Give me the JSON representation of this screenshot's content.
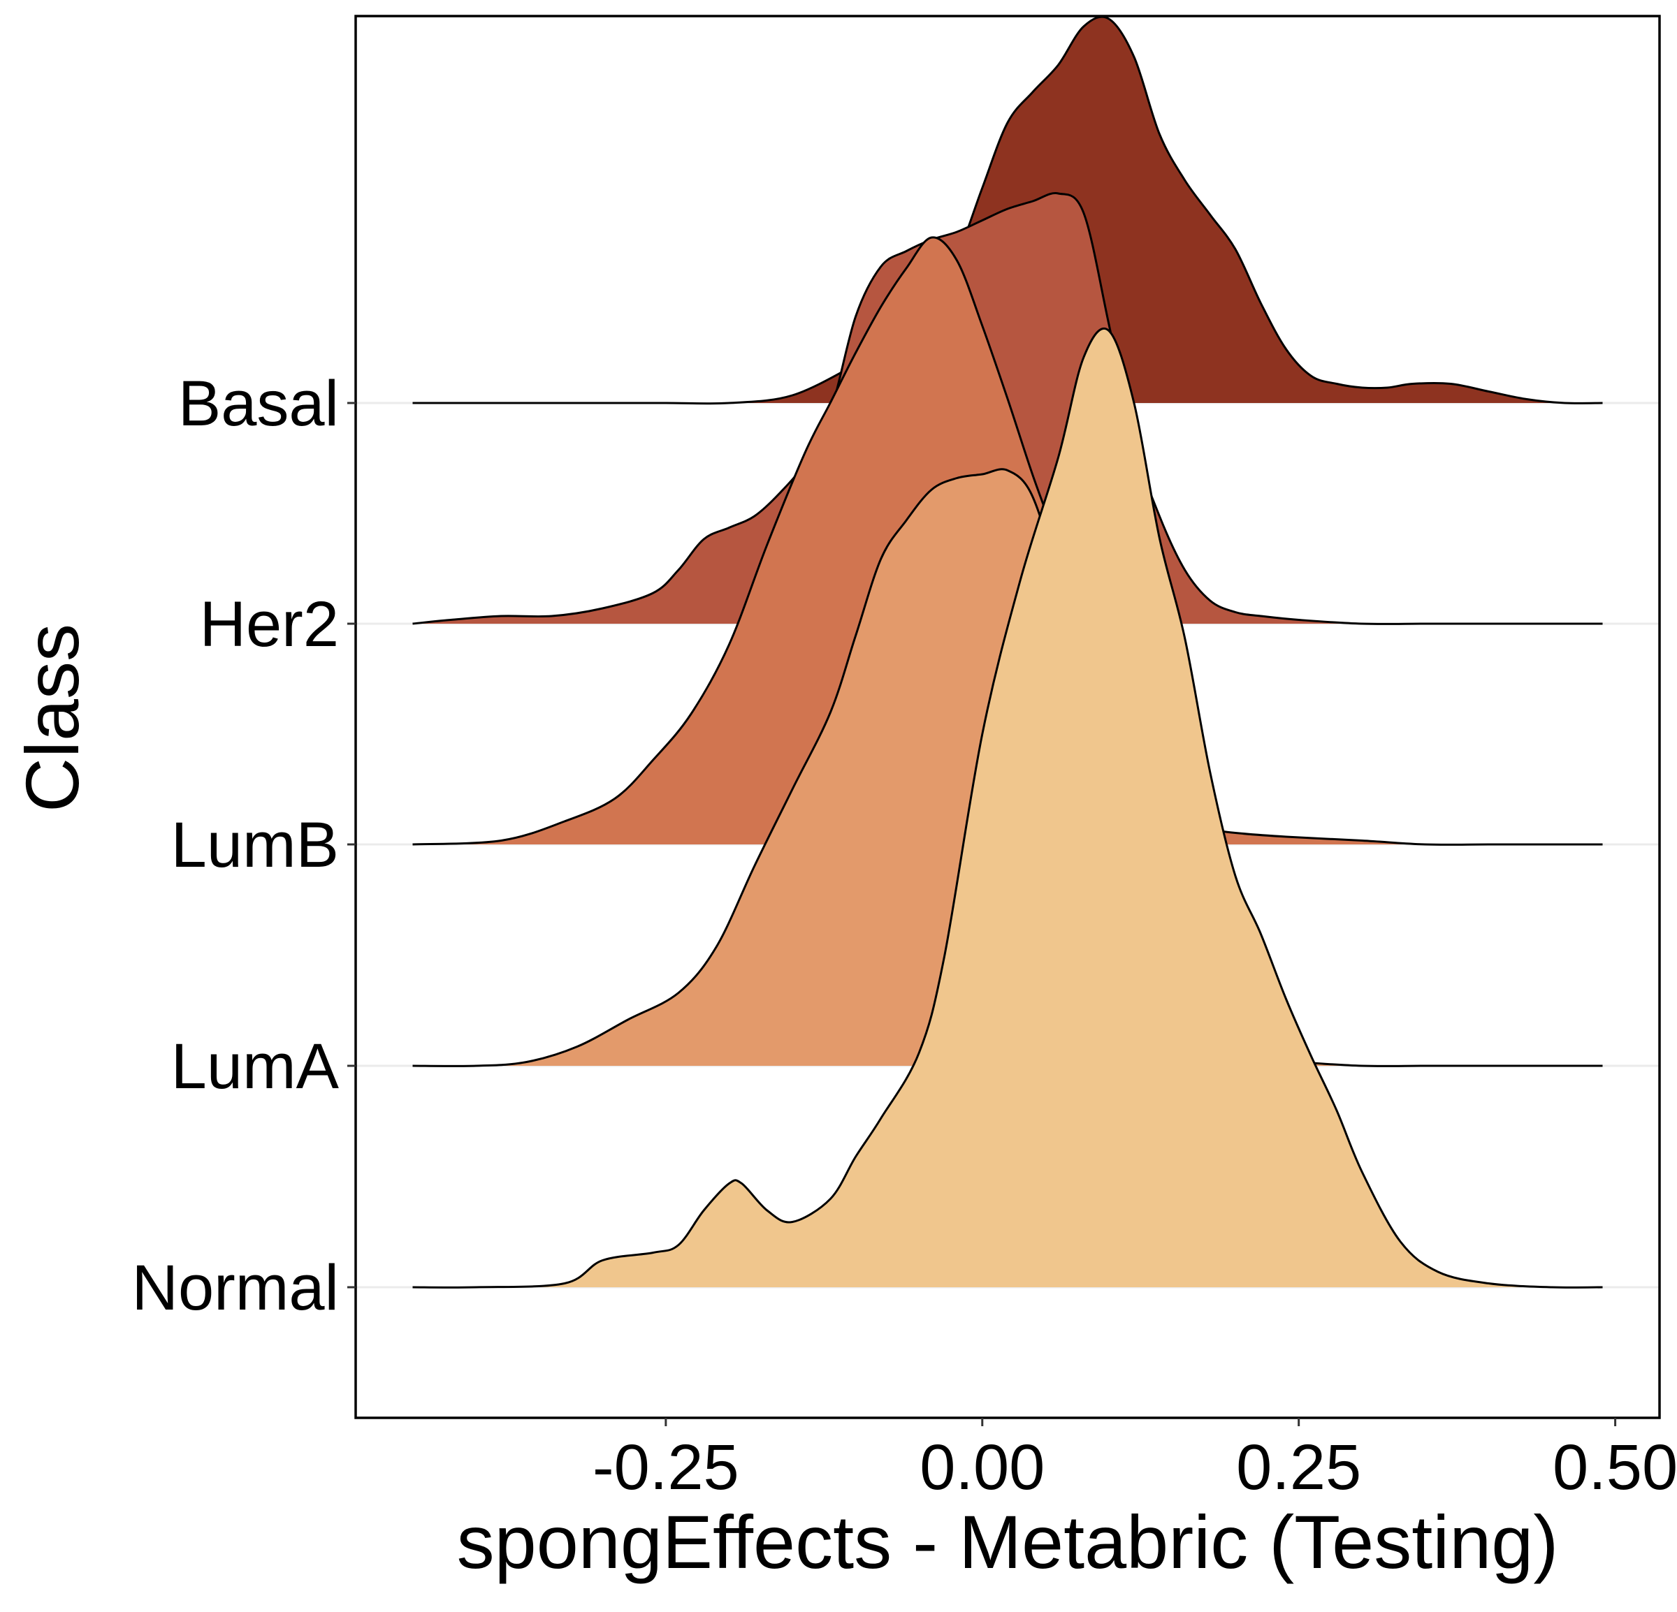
{
  "chart_data": {
    "type": "ridgeline",
    "xlabel": "spongEffects - Metabric (Testing)",
    "ylabel": "Class",
    "xlim": [
      -0.495,
      0.535
    ],
    "x_ticks": [
      "-0.25",
      "0.00",
      "0.25",
      "0.50"
    ],
    "x_tick_values": [
      -0.25,
      0.0,
      0.25,
      0.5
    ],
    "grid": "horizontal major lines at each class baseline",
    "legend": "none",
    "series": [
      {
        "name": "Basal",
        "color": "#8E3320",
        "x": [
          -0.45,
          -0.35,
          -0.3,
          -0.25,
          -0.2,
          -0.15,
          -0.1,
          -0.08,
          -0.06,
          -0.04,
          -0.02,
          0.0,
          0.02,
          0.04,
          0.06,
          0.08,
          0.1,
          0.12,
          0.14,
          0.16,
          0.18,
          0.2,
          0.22,
          0.24,
          0.26,
          0.28,
          0.3,
          0.32,
          0.34,
          0.37,
          0.4,
          0.43,
          0.46,
          0.49
        ],
        "density": [
          0.0,
          0.0,
          0.0,
          0.0,
          0.0,
          0.02,
          0.1,
          0.14,
          0.19,
          0.26,
          0.38,
          0.56,
          0.73,
          0.81,
          0.88,
          0.98,
          1.0,
          0.9,
          0.7,
          0.58,
          0.49,
          0.4,
          0.26,
          0.14,
          0.07,
          0.05,
          0.04,
          0.04,
          0.05,
          0.05,
          0.03,
          0.01,
          0.0,
          0.0
        ]
      },
      {
        "name": "Her2",
        "color": "#B65640",
        "x": [
          -0.45,
          -0.42,
          -0.38,
          -0.34,
          -0.3,
          -0.26,
          -0.24,
          -0.22,
          -0.2,
          -0.18,
          -0.16,
          -0.14,
          -0.12,
          -0.1,
          -0.08,
          -0.06,
          -0.04,
          -0.02,
          0.0,
          0.02,
          0.04,
          0.06,
          0.08,
          0.1,
          0.12,
          0.14,
          0.16,
          0.18,
          0.2,
          0.22,
          0.25,
          0.3,
          0.35,
          0.4,
          0.45,
          0.49
        ],
        "density": [
          0.0,
          0.01,
          0.02,
          0.02,
          0.04,
          0.08,
          0.14,
          0.22,
          0.25,
          0.28,
          0.34,
          0.42,
          0.55,
          0.8,
          0.93,
          0.97,
          1.0,
          1.02,
          1.05,
          1.08,
          1.1,
          1.12,
          1.07,
          0.78,
          0.47,
          0.28,
          0.14,
          0.06,
          0.03,
          0.02,
          0.01,
          0.0,
          0.0,
          0.0,
          0.0,
          0.0
        ]
      },
      {
        "name": "LumB",
        "color": "#D17550",
        "x": [
          -0.45,
          -0.38,
          -0.33,
          -0.29,
          -0.26,
          -0.23,
          -0.2,
          -0.17,
          -0.14,
          -0.12,
          -0.1,
          -0.08,
          -0.06,
          -0.04,
          -0.02,
          0.0,
          0.02,
          0.04,
          0.06,
          0.08,
          0.1,
          0.12,
          0.14,
          0.16,
          0.18,
          0.2,
          0.24,
          0.3,
          0.35,
          0.4,
          0.45,
          0.49
        ],
        "density": [
          0.0,
          0.01,
          0.06,
          0.12,
          0.22,
          0.34,
          0.52,
          0.78,
          1.02,
          1.15,
          1.28,
          1.4,
          1.5,
          1.58,
          1.52,
          1.35,
          1.16,
          0.96,
          0.78,
          0.6,
          0.42,
          0.25,
          0.12,
          0.06,
          0.04,
          0.03,
          0.02,
          0.01,
          0.0,
          0.0,
          0.0,
          0.0
        ]
      },
      {
        "name": "LumA",
        "color": "#E39A6B",
        "x": [
          -0.45,
          -0.4,
          -0.36,
          -0.32,
          -0.28,
          -0.24,
          -0.21,
          -0.18,
          -0.15,
          -0.12,
          -0.1,
          -0.08,
          -0.06,
          -0.04,
          -0.02,
          0.0,
          0.02,
          0.04,
          0.06,
          0.08,
          0.1,
          0.12,
          0.14,
          0.16,
          0.18,
          0.2,
          0.22,
          0.25,
          0.3,
          0.35,
          0.4,
          0.45,
          0.49
        ],
        "density": [
          0.0,
          0.0,
          0.01,
          0.05,
          0.12,
          0.19,
          0.31,
          0.52,
          0.72,
          0.92,
          1.12,
          1.32,
          1.42,
          1.5,
          1.53,
          1.54,
          1.55,
          1.48,
          1.25,
          0.88,
          0.52,
          0.28,
          0.16,
          0.1,
          0.06,
          0.04,
          0.02,
          0.01,
          0.0,
          0.0,
          0.0,
          0.0,
          0.0
        ]
      },
      {
        "name": "Normal",
        "color": "#F0C68D",
        "x": [
          -0.45,
          -0.4,
          -0.33,
          -0.3,
          -0.26,
          -0.24,
          -0.22,
          -0.2,
          -0.19,
          -0.17,
          -0.15,
          -0.12,
          -0.1,
          -0.08,
          -0.05,
          -0.03,
          0.0,
          0.03,
          0.06,
          0.08,
          0.1,
          0.12,
          0.14,
          0.16,
          0.18,
          0.2,
          0.22,
          0.24,
          0.26,
          0.28,
          0.3,
          0.33,
          0.36,
          0.4,
          0.45,
          0.49
        ],
        "density": [
          0.0,
          0.0,
          0.01,
          0.07,
          0.09,
          0.11,
          0.2,
          0.27,
          0.27,
          0.2,
          0.17,
          0.23,
          0.34,
          0.44,
          0.61,
          0.86,
          1.44,
          1.84,
          2.16,
          2.42,
          2.49,
          2.3,
          1.95,
          1.69,
          1.34,
          1.07,
          0.92,
          0.75,
          0.6,
          0.46,
          0.3,
          0.12,
          0.04,
          0.01,
          0.0,
          0.0
        ]
      }
    ]
  }
}
